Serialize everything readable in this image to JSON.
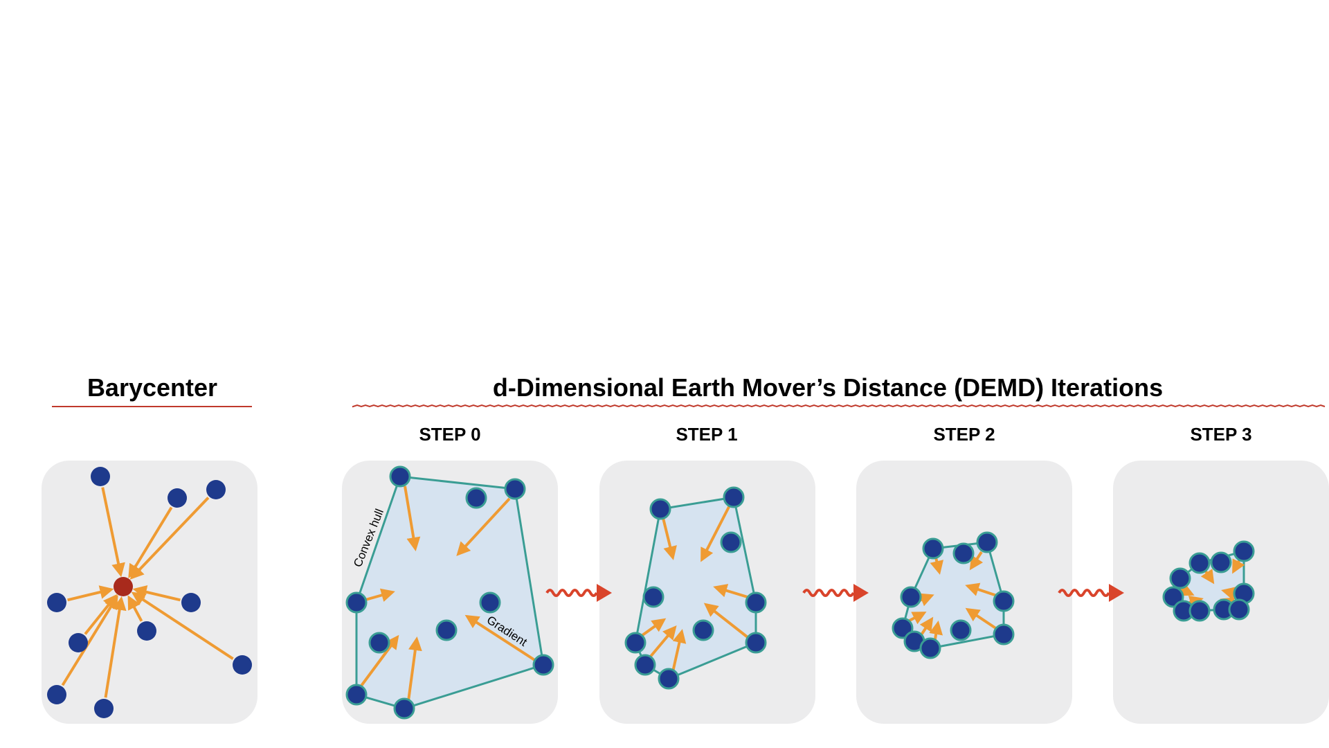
{
  "headings": {
    "barycenter": "Barycenter",
    "demd": "d-Dimensional Earth Mover’s Distance (DEMD) Iterations"
  },
  "steps": [
    {
      "title": "STEP 0"
    },
    {
      "title": "STEP 1"
    },
    {
      "title": "STEP 2"
    },
    {
      "title": "STEP 3"
    }
  ],
  "annotations": {
    "convex_hull": "Convex hull",
    "gradient": "Gradient"
  },
  "colors": {
    "panel": "#ececed",
    "point": "#1e3a8c",
    "point_outline": "#3a9d94",
    "barycenter_point": "#a82a1c",
    "arrow": "#ef9b33",
    "hull_stroke": "#3a9d94",
    "hull_fill": "#d6e3f0",
    "underline": "#c0392b",
    "squiggle": "#d9442b"
  }
}
